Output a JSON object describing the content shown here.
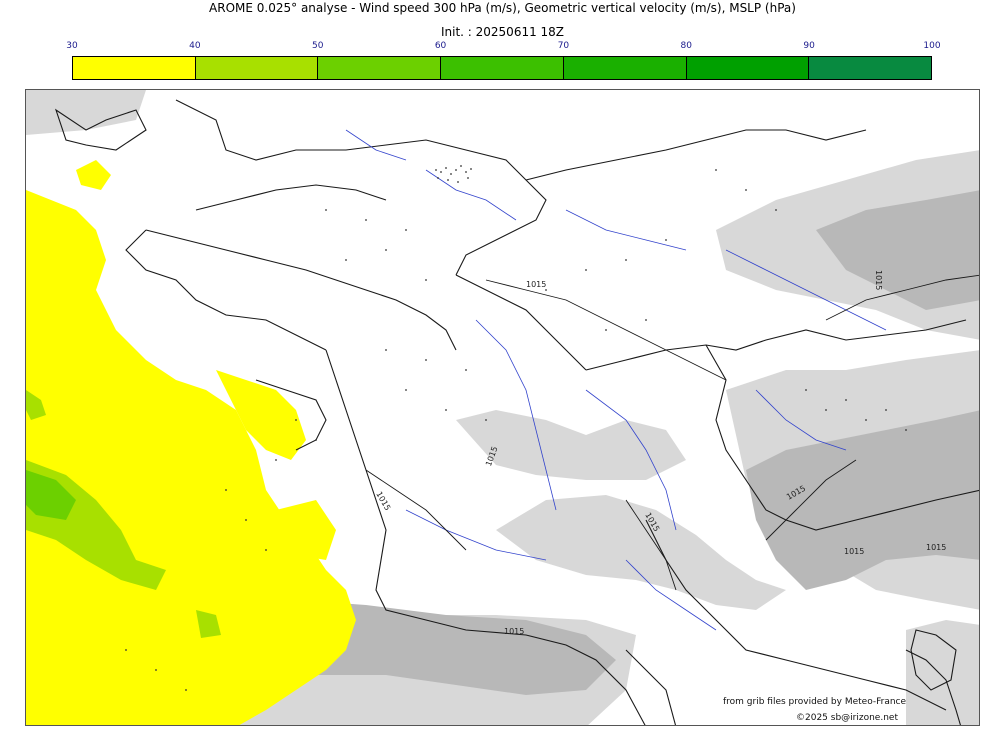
{
  "title": {
    "line1": "AROME 0.025° analyse - Wind speed 300 hPa (m/s), Geometric vertical velocity (m/s), MSLP (hPa)",
    "line2": "Init. : 20250611 18Z"
  },
  "colorbar": {
    "ticks": [
      "30",
      "40",
      "50",
      "60",
      "70",
      "80",
      "90",
      "100"
    ],
    "colors": [
      "#ffff00",
      "#a8e000",
      "#6cd000",
      "#3cc000",
      "#1ab000",
      "#00a000",
      "#088a40",
      "#0a7850"
    ]
  },
  "isobar_labels": [
    "1015",
    "1015",
    "1015",
    "1015",
    "1015",
    "1015",
    "1015",
    "1015",
    "1015"
  ],
  "colors": {
    "coast": "#1a1a1a",
    "river": "#3344cc",
    "relief_light": "#d8d8d8",
    "relief_dark": "#b8b8b8",
    "wind_yellow": "#ffff00",
    "wind_green": "#a8e000",
    "wind_green_dark": "#6cd000"
  },
  "credits": {
    "source": "from grib files provided by Meteo-France",
    "copyright": "©2025 sb@irizone.net"
  }
}
